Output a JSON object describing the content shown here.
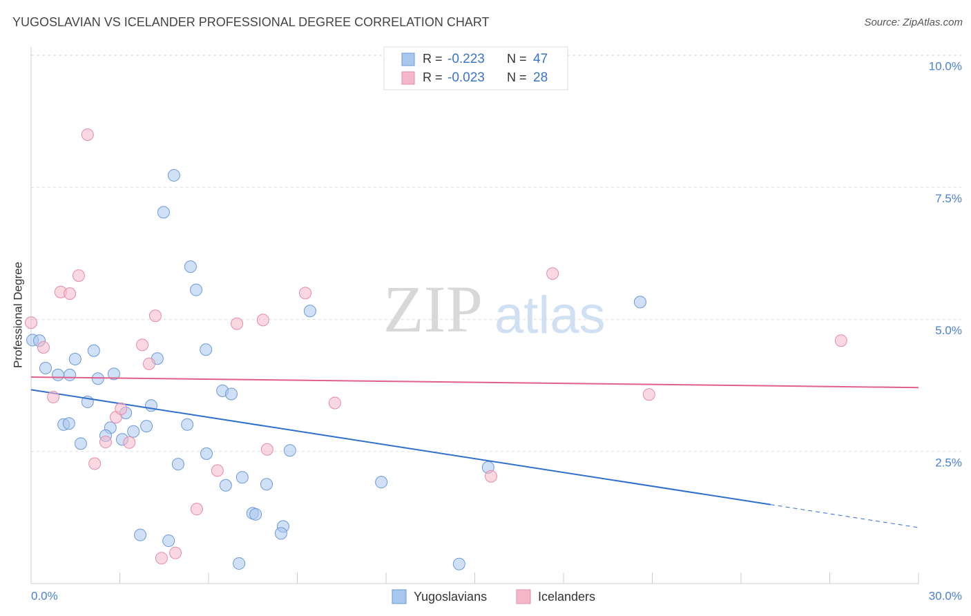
{
  "chart_data": {
    "type": "scatter",
    "title": "YUGOSLAVIAN VS ICELANDER PROFESSIONAL DEGREE CORRELATION CHART",
    "source": "Source: ZipAtlas.com",
    "ylabel": "Professional Degree",
    "watermark": [
      "ZIP",
      "atlas"
    ],
    "xlim": [
      0,
      30
    ],
    "ylim": [
      0,
      10.16
    ],
    "xticks": [
      {
        "value": 0,
        "label": "0.0%"
      },
      {
        "value": 3,
        "label": null
      },
      {
        "value": 6,
        "label": null
      },
      {
        "value": 9,
        "label": null
      },
      {
        "value": 12,
        "label": null
      },
      {
        "value": 15,
        "label": null
      },
      {
        "value": 18,
        "label": null
      },
      {
        "value": 21,
        "label": null
      },
      {
        "value": 24,
        "label": null
      },
      {
        "value": 27,
        "label": null
      },
      {
        "value": 30,
        "label": "30.0%"
      }
    ],
    "yticks": [
      {
        "value": 2.5,
        "label": "2.5%"
      },
      {
        "value": 5,
        "label": "5.0%"
      },
      {
        "value": 7.5,
        "label": "7.5%"
      },
      {
        "value": 10,
        "label": "10.0%"
      }
    ],
    "grid": true,
    "legend_r_label": "R =",
    "legend_n_label": "N =",
    "series": [
      {
        "name": "Yugoslavians",
        "color": "#a9c6ef",
        "stroke": "#6a9ad8",
        "line_color": "#2f6fce",
        "r": -0.223,
        "n": 47,
        "trend": {
          "x": [
            0,
            30
          ],
          "y": [
            3.67,
            1.06
          ],
          "solid_until": 25
        },
        "x": [
          0.05,
          0.28,
          0.49,
          0.91,
          1.31,
          1.49,
          2.12,
          1.91,
          1.1,
          1.28,
          1.68,
          2.26,
          2.8,
          2.68,
          2.52,
          3.2,
          3.08,
          3.46,
          3.9,
          4.06,
          4.27,
          4.83,
          4.48,
          5.39,
          5.58,
          5.91,
          5.28,
          4.97,
          5.93,
          3.69,
          4.65,
          6.47,
          6.77,
          6.58,
          7.14,
          7.03,
          7.49,
          7.59,
          7.96,
          8.52,
          8.45,
          8.75,
          9.43,
          11.84,
          14.47,
          15.45,
          20.59
        ],
        "values": [
          4.61,
          4.6,
          4.08,
          3.95,
          3.95,
          4.25,
          4.41,
          3.44,
          3.01,
          3.03,
          2.65,
          3.88,
          3.97,
          2.95,
          2.8,
          3.23,
          2.73,
          2.88,
          2.98,
          3.37,
          4.26,
          7.73,
          7.03,
          6.0,
          5.56,
          4.43,
          3.01,
          2.26,
          2.46,
          0.92,
          0.81,
          3.65,
          3.59,
          1.86,
          2.01,
          0.38,
          1.33,
          1.31,
          1.88,
          1.08,
          0.95,
          2.52,
          5.16,
          1.92,
          0.37,
          2.2,
          5.33
        ]
      },
      {
        "name": "Icelanders",
        "color": "#f5b8ca",
        "stroke": "#e68aa8",
        "line_color": "#e0608a",
        "r": -0.023,
        "n": 28,
        "trend": {
          "x": [
            0,
            30
          ],
          "y": [
            3.91,
            3.71
          ],
          "solid_until": 30
        },
        "x": [
          0.0,
          0.42,
          0.75,
          1.0,
          1.31,
          1.61,
          1.91,
          2.15,
          2.52,
          2.87,
          3.04,
          3.32,
          3.76,
          3.99,
          4.2,
          4.41,
          4.88,
          5.6,
          6.3,
          6.96,
          7.84,
          7.98,
          9.27,
          10.27,
          15.55,
          17.63,
          20.89,
          27.38
        ],
        "values": [
          4.94,
          4.47,
          3.53,
          5.52,
          5.49,
          5.83,
          8.5,
          2.27,
          2.68,
          3.15,
          3.31,
          2.67,
          4.52,
          4.16,
          5.07,
          0.48,
          0.58,
          1.41,
          2.14,
          4.92,
          4.99,
          2.54,
          5.5,
          3.42,
          2.03,
          5.87,
          3.58,
          4.6
        ]
      }
    ]
  }
}
